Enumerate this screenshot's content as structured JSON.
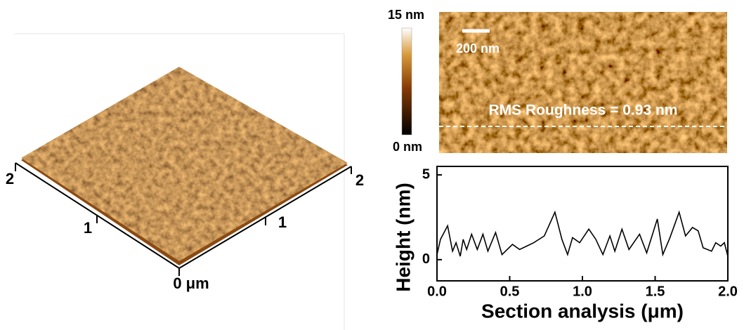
{
  "surface_3d": {
    "left_axis_ticks": [
      "2",
      "1"
    ],
    "origin_label": "0 μm",
    "right_axis_ticks": [
      "1",
      "2"
    ]
  },
  "height_image": {
    "colorbar_max": "15 nm",
    "colorbar_min": "0 nm",
    "scale_bar": "200 nm",
    "annotation": "RMS Roughness = 0.93 nm"
  },
  "chart_data": {
    "type": "line",
    "xlabel": "Section analysis (μm)",
    "ylabel": "Height (nm)",
    "x": [
      0.0,
      0.024,
      0.049,
      0.073,
      0.107,
      0.131,
      0.16,
      0.18,
      0.204,
      0.238,
      0.277,
      0.316,
      0.35,
      0.403,
      0.447,
      0.519,
      0.568,
      0.617,
      0.665,
      0.738,
      0.811,
      0.859,
      0.898,
      0.932,
      0.981,
      1.044,
      1.092,
      1.141,
      1.189,
      1.223,
      1.272,
      1.32,
      1.393,
      1.442,
      1.515,
      1.553,
      1.602,
      1.665,
      1.709,
      1.757,
      1.796,
      1.83,
      1.888,
      1.917,
      1.951,
      1.976,
      2.0
    ],
    "series": [
      {
        "color": "#000000",
        "values": [
          0.3,
          1.2,
          1.6,
          2.0,
          0.5,
          1.0,
          0.2,
          1.2,
          0.6,
          1.5,
          0.6,
          1.5,
          0.5,
          1.6,
          0.3,
          0.9,
          0.6,
          0.8,
          1.0,
          1.4,
          2.8,
          1.2,
          0.3,
          1.3,
          1.0,
          1.8,
          1.2,
          0.3,
          1.4,
          0.5,
          1.8,
          0.6,
          1.5,
          0.4,
          2.4,
          0.3,
          1.3,
          2.8,
          1.4,
          1.9,
          1.7,
          0.7,
          0.5,
          1.0,
          0.8,
          1.0,
          0.2
        ]
      }
    ],
    "xlim": [
      0,
      2
    ],
    "ylim": [
      -1.25,
      5.5
    ],
    "xticks": [
      {
        "value": 0,
        "label": "0.0"
      },
      0.5,
      {
        "value": 1,
        "label": "1.0"
      },
      1.5,
      {
        "value": 2,
        "label": "2.0"
      }
    ],
    "yticks": [
      0,
      5
    ],
    "grid": false
  }
}
